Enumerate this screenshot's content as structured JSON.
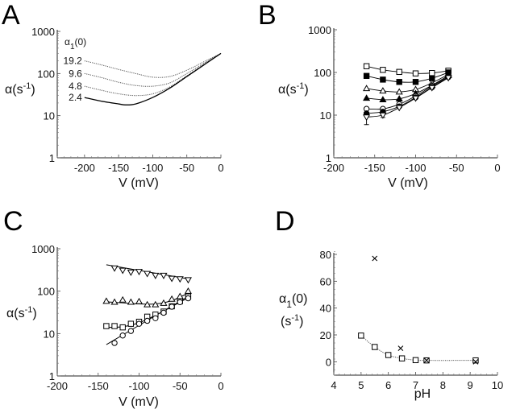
{
  "chart_data": [
    {
      "panel": "A",
      "type": "line",
      "xlabel": "V (mV)",
      "ylabel": "α(s-1)",
      "yscale": "log",
      "xlim": [
        -240,
        0
      ],
      "ylim": [
        1,
        1000
      ],
      "xticks": [
        -200,
        -150,
        -100,
        -50,
        0
      ],
      "yticks": [
        1,
        10,
        100,
        1000
      ],
      "legend_title": "α1(0)",
      "series": [
        {
          "name": "19.2",
          "style": "dotted",
          "x": [
            -200,
            -175,
            -150,
            -125,
            -100,
            -75,
            -50,
            -25,
            0
          ],
          "values": [
            200,
            160,
            125,
            100,
            82,
            85,
            120,
            190,
            300
          ]
        },
        {
          "name": "9.6",
          "style": "dotted",
          "x": [
            -200,
            -175,
            -150,
            -125,
            -100,
            -75,
            -50,
            -25,
            0
          ],
          "values": [
            100,
            80,
            62,
            52,
            50,
            60,
            100,
            175,
            300
          ]
        },
        {
          "name": "4.8",
          "style": "dotted",
          "x": [
            -200,
            -175,
            -150,
            -125,
            -100,
            -75,
            -50,
            -25,
            0
          ],
          "values": [
            50,
            40,
            33,
            30,
            33,
            48,
            88,
            165,
            300
          ]
        },
        {
          "name": "2.4",
          "style": "solid",
          "x": [
            -200,
            -175,
            -150,
            -140,
            -125,
            -100,
            -75,
            -50,
            -25,
            0
          ],
          "values": [
            27,
            22,
            19,
            18,
            19,
            27,
            45,
            85,
            160,
            300
          ]
        }
      ]
    },
    {
      "panel": "B",
      "type": "line",
      "xlabel": "V (mV)",
      "ylabel": "α(s-1)",
      "yscale": "log",
      "xlim": [
        -200,
        0
      ],
      "ylim": [
        1,
        1000
      ],
      "xticks": [
        -200,
        -150,
        -100,
        -50,
        0
      ],
      "yticks": [
        1,
        10,
        100,
        1000
      ],
      "x": [
        -160,
        -140,
        -120,
        -100,
        -80,
        -60
      ],
      "series": [
        {
          "name": "open-square",
          "marker": "square-open",
          "values": [
            140,
            115,
            103,
            95,
            97,
            110
          ]
        },
        {
          "name": "filled-square",
          "marker": "square-filled",
          "values": [
            83,
            68,
            60,
            60,
            73,
            100
          ]
        },
        {
          "name": "open-triangle",
          "marker": "triangle-open",
          "values": [
            42,
            37,
            35,
            40,
            57,
            90
          ]
        },
        {
          "name": "filled-triangle",
          "marker": "triangle-filled",
          "values": [
            25,
            23,
            24,
            32,
            50,
            85
          ]
        },
        {
          "name": "open-circle",
          "marker": "circle-open",
          "values": [
            14,
            14,
            18,
            28,
            48,
            80
          ]
        },
        {
          "name": "filled-circle",
          "marker": "circle-filled",
          "values": [
            11,
            12,
            16,
            26,
            45,
            78
          ]
        },
        {
          "name": "open-down-triangle",
          "marker": "triangle-down-open",
          "values": [
            9,
            10,
            15,
            25,
            44,
            75
          ]
        }
      ]
    },
    {
      "panel": "C",
      "type": "scatter",
      "xlabel": "V (mV)",
      "ylabel": "α(s-1)",
      "yscale": "log",
      "xlim": [
        -200,
        0
      ],
      "ylim": [
        1,
        1000
      ],
      "xticks": [
        -200,
        -150,
        -100,
        -50,
        0
      ],
      "yticks": [
        1,
        10,
        100,
        1000
      ],
      "series": [
        {
          "name": "down-triangles",
          "marker": "triangle-down-open",
          "x": [
            -130,
            -120,
            -110,
            -100,
            -90,
            -80,
            -70,
            -60,
            -50,
            -40
          ],
          "values": [
            350,
            310,
            280,
            290,
            260,
            235,
            235,
            200,
            195,
            185
          ],
          "fit_x": [
            -140,
            -40
          ],
          "fit": [
            420,
            195
          ]
        },
        {
          "name": "triangles",
          "marker": "triangle-open",
          "x": [
            -140,
            -130,
            -120,
            -110,
            -100,
            -90,
            -80,
            -70,
            -60,
            -50,
            -40
          ],
          "values": [
            58,
            55,
            62,
            55,
            57,
            48,
            48,
            52,
            65,
            75,
            100
          ],
          "fit_x": [
            -140,
            -120,
            -100,
            -80,
            -60,
            -40
          ],
          "fit": [
            56,
            53,
            50,
            50,
            60,
            90
          ]
        },
        {
          "name": "squares",
          "marker": "square-open",
          "x": [
            -140,
            -130,
            -120,
            -110,
            -100,
            -90,
            -80,
            -70,
            -60,
            -50,
            -40
          ],
          "values": [
            15,
            15,
            14,
            17,
            19,
            25,
            28,
            33,
            44,
            58,
            75
          ],
          "fit_x": [
            -140,
            -120,
            -100,
            -80,
            -60,
            -40
          ],
          "fit": [
            14,
            14.5,
            18,
            27,
            43,
            70
          ]
        },
        {
          "name": "circles",
          "marker": "circle-open",
          "x": [
            -130,
            -120,
            -110,
            -100,
            -90,
            -80,
            -70,
            -60,
            -50,
            -40
          ],
          "values": [
            6,
            9,
            11.5,
            17,
            20,
            23,
            31,
            43,
            55,
            68
          ],
          "fit_x": [
            -140,
            -40
          ],
          "fit": [
            5.5,
            75
          ]
        }
      ]
    },
    {
      "panel": "D",
      "type": "scatter",
      "xlabel": "pH",
      "ylabel": "α1(0) (s-1)",
      "yscale": "linear",
      "xlim": [
        4,
        10
      ],
      "ylim": [
        -10,
        85
      ],
      "xticks": [
        4,
        5,
        6,
        7,
        8,
        9,
        10
      ],
      "yticks": [
        0,
        20,
        40,
        60,
        80
      ],
      "series": [
        {
          "name": "squares",
          "marker": "square-open",
          "x": [
            5.0,
            5.5,
            6.0,
            6.5,
            7.0,
            7.4,
            9.2
          ],
          "values": [
            19.5,
            11,
            5,
            2.5,
            1.2,
            1,
            1
          ],
          "fit": "dotted"
        },
        {
          "name": "crosses",
          "marker": "cross",
          "x": [
            5.5,
            6.45,
            7.4,
            9.2
          ],
          "values": [
            77,
            10,
            1,
            0
          ]
        }
      ]
    }
  ],
  "labels": {
    "panelA": "A",
    "panelB": "B",
    "panelC": "C",
    "panelD": "D",
    "alpha_axis": "α(s",
    "alpha_sup": "-1",
    "alpha_close": ")",
    "v_axis": "V (mV)",
    "ph_axis": "pH",
    "d_ylabel_top": "α",
    "d_ylabel_sub": "1",
    "d_ylabel_rest": "(0)",
    "d_ylabel_unit": "(s",
    "legend_title_alpha": "α",
    "legend_title_sub": "1",
    "legend_title_rest": "(0)"
  }
}
